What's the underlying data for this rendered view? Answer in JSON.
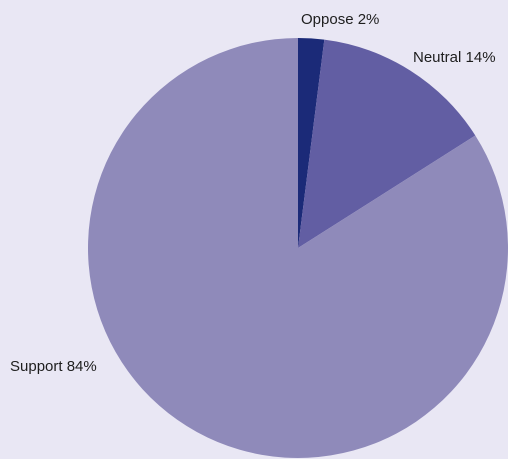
{
  "chart_data": {
    "type": "pie",
    "title": "",
    "labels": [
      "Oppose",
      "Neutral",
      "Support"
    ],
    "values": [
      2,
      14,
      84
    ],
    "display_labels": [
      "Oppose 2%",
      "Neutral 14%",
      "Support 84%"
    ],
    "colors": [
      "#1b2a78",
      "#625ea3",
      "#8f8aba"
    ],
    "start": "12 o'clock",
    "direction": "clockwise",
    "legend": "none"
  },
  "background_color": "#e9e7f4"
}
